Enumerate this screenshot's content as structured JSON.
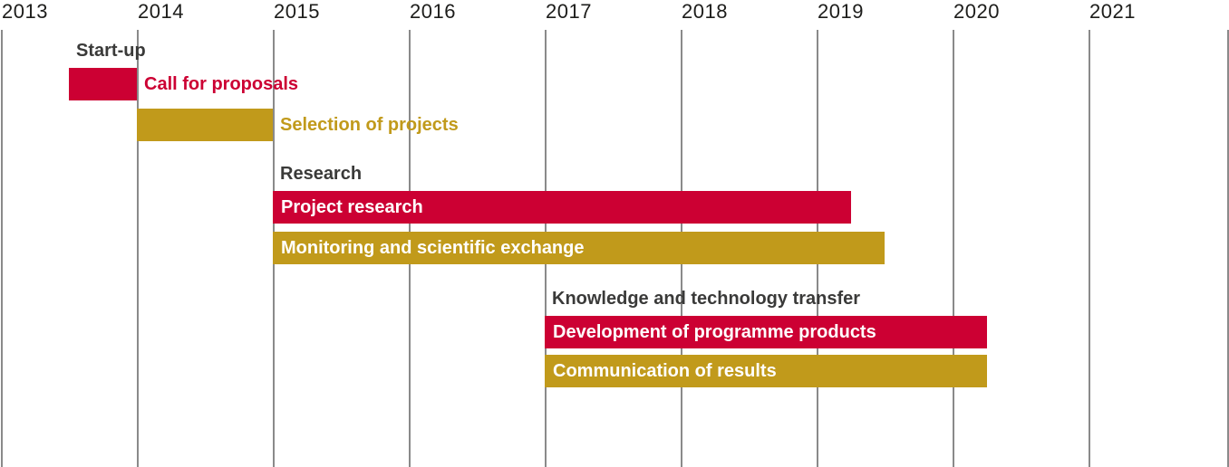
{
  "page": {
    "background": "#FFFFFF"
  },
  "chart_data": {
    "type": "gantt",
    "title": "",
    "x_axis": {
      "unit": "year",
      "ticks": [
        "2013",
        "2014",
        "2015",
        "2016",
        "2017",
        "2018",
        "2019",
        "2020",
        "2021"
      ],
      "tick_values": [
        2013,
        2014,
        2015,
        2016,
        2017,
        2018,
        2019,
        2020,
        2021
      ],
      "range": [
        2013,
        2022
      ],
      "gridlines": true,
      "extra_unlabeled_gridline_at_right_edge": true,
      "legend": "none"
    },
    "colors": {
      "crimson": "#CC0033",
      "gold": "#C19A1B",
      "text_dark": "#3A3A39",
      "gridline": "#8A8A8A",
      "white": "#FFFFFF"
    },
    "sections": [
      {
        "header": "Start-up",
        "tasks": [
          {
            "label": "Call for proposals",
            "start": 2013.5,
            "end": 2014.0,
            "bar_color": "crimson",
            "label_placement": "right",
            "label_color": "crimson"
          },
          {
            "label": "Selection of projects",
            "start": 2014.0,
            "end": 2015.0,
            "bar_color": "gold",
            "label_placement": "right",
            "label_color": "gold"
          }
        ]
      },
      {
        "header": "Research",
        "tasks": [
          {
            "label": "Project research",
            "start": 2015.0,
            "end": 2019.25,
            "bar_color": "crimson",
            "label_placement": "inside",
            "label_color": "white"
          },
          {
            "label": "Monitoring and scientific exchange",
            "start": 2015.0,
            "end": 2019.5,
            "bar_color": "gold",
            "label_placement": "inside",
            "label_color": "white"
          }
        ]
      },
      {
        "header": "Knowledge and technology transfer",
        "tasks": [
          {
            "label": "Development of programme products",
            "start": 2017.0,
            "end": 2020.25,
            "bar_color": "crimson",
            "label_placement": "inside",
            "label_color": "white"
          },
          {
            "label": "Communication of results",
            "start": 2017.0,
            "end": 2020.25,
            "bar_color": "gold",
            "label_placement": "inside",
            "label_color": "white"
          }
        ]
      }
    ]
  }
}
